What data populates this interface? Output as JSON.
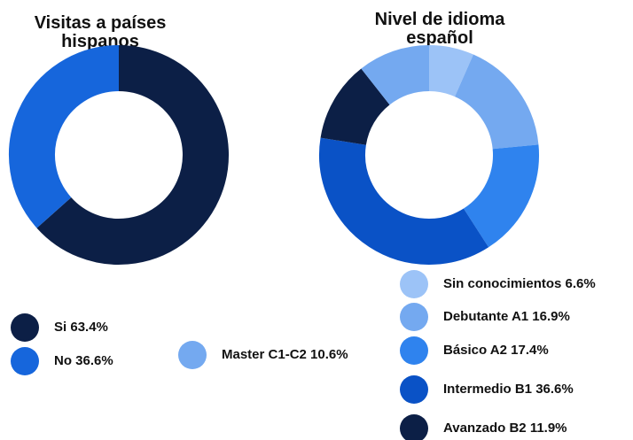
{
  "chart_data": [
    {
      "type": "donut",
      "title": "Visitas a países hispanos",
      "categories": [
        "Si",
        "No"
      ],
      "values": [
        63.4,
        36.6
      ],
      "value_labels": [
        "63.4%",
        "36.6%"
      ],
      "colors": [
        "#0c1f46",
        "#1666dc"
      ]
    },
    {
      "type": "donut",
      "title": "Nivel de idioma español",
      "categories": [
        "Sin conocimientos",
        "Debutante A1",
        "Básico A2",
        "Intermedio B1",
        "Avanzado B2",
        "Master C1-C2"
      ],
      "values": [
        6.6,
        16.9,
        17.4,
        36.6,
        11.9,
        10.6
      ],
      "value_labels": [
        "6.6%",
        "16.9%",
        "17.4%",
        "36.6%",
        "11.9%",
        "10.6%"
      ],
      "colors": [
        "#9cc3f7",
        "#74a9f0",
        "#2f83ee",
        "#0a52c6",
        "#0c1f46",
        "#74a9f0"
      ]
    }
  ]
}
